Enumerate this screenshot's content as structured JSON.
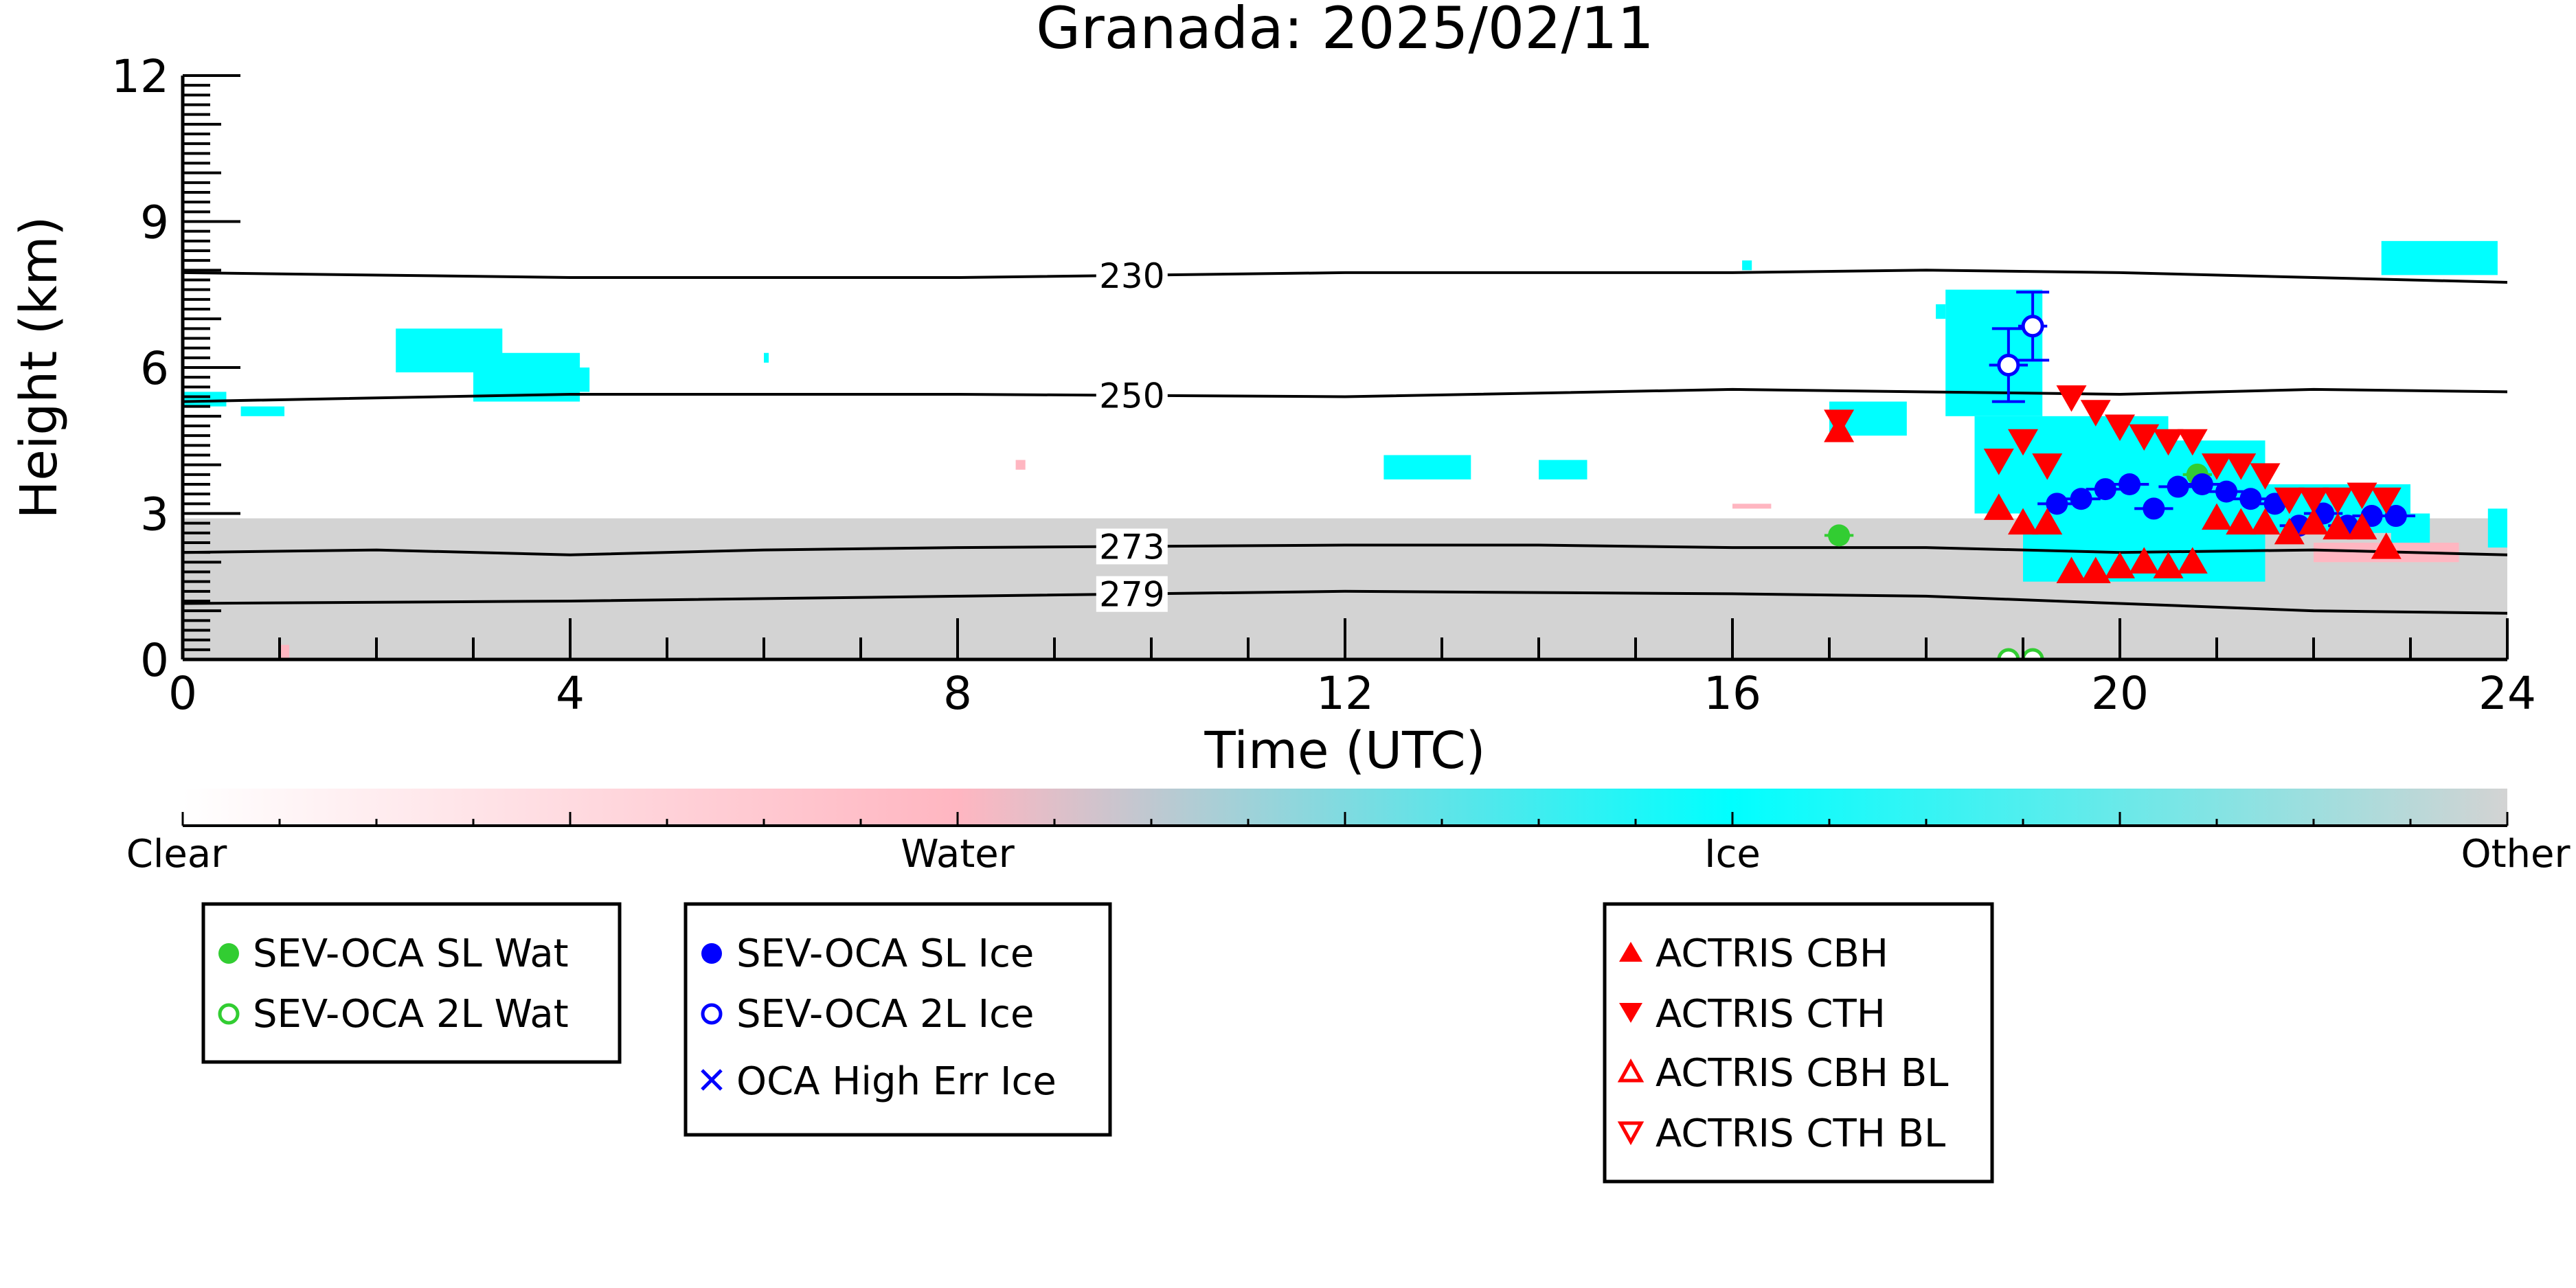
{
  "chart_data": {
    "type": "scatter",
    "title": "Granada: 2025/02/11",
    "xlabel": "Time (UTC)",
    "ylabel": "Height (km)",
    "xlim": [
      0,
      24
    ],
    "ylim": [
      0,
      12
    ],
    "xticks": [
      0,
      4,
      8,
      12,
      16,
      20,
      24
    ],
    "yticks": [
      0,
      3,
      6,
      9,
      12
    ],
    "grid": false,
    "colors": {
      "clear": "#ffffff",
      "water": "#ffb6c1",
      "ice": "#00ffff",
      "other": "#d3d3d3",
      "contour": "#000000",
      "green": "#32cd32",
      "blue": "#0000ff",
      "red": "#ff0000"
    },
    "colorbar": {
      "labels": [
        "Clear",
        "Water",
        "Ice",
        "Other"
      ]
    },
    "temperature_contours": [
      {
        "label": "230",
        "label_x": 9.8,
        "points": [
          [
            0,
            7.95
          ],
          [
            4,
            7.85
          ],
          [
            8,
            7.85
          ],
          [
            12,
            7.95
          ],
          [
            16,
            7.95
          ],
          [
            18,
            8.0
          ],
          [
            20,
            7.95
          ],
          [
            22,
            7.85
          ],
          [
            24,
            7.75
          ]
        ]
      },
      {
        "label": "250",
        "label_x": 9.8,
        "points": [
          [
            0,
            5.3
          ],
          [
            4,
            5.45
          ],
          [
            8,
            5.45
          ],
          [
            12,
            5.4
          ],
          [
            16,
            5.55
          ],
          [
            20,
            5.45
          ],
          [
            22,
            5.55
          ],
          [
            24,
            5.5
          ]
        ]
      },
      {
        "label": "273",
        "label_x": 9.8,
        "points": [
          [
            0,
            2.2
          ],
          [
            2,
            2.25
          ],
          [
            4,
            2.15
          ],
          [
            6,
            2.25
          ],
          [
            8,
            2.3
          ],
          [
            12,
            2.35
          ],
          [
            14,
            2.35
          ],
          [
            16,
            2.3
          ],
          [
            18,
            2.3
          ],
          [
            20,
            2.2
          ],
          [
            22,
            2.25
          ],
          [
            24,
            2.15
          ]
        ]
      },
      {
        "label": "279",
        "label_x": 9.8,
        "points": [
          [
            0,
            1.15
          ],
          [
            4,
            1.2
          ],
          [
            8,
            1.3
          ],
          [
            12,
            1.4
          ],
          [
            16,
            1.35
          ],
          [
            18,
            1.3
          ],
          [
            20,
            1.15
          ],
          [
            22,
            1.0
          ],
          [
            24,
            0.95
          ]
        ]
      }
    ],
    "masks": {
      "other": [
        [
          0,
          24,
          0,
          2.9
        ]
      ],
      "ice": [
        [
          0,
          0.45,
          5.2,
          5.5
        ],
        [
          0.6,
          1.05,
          5.0,
          5.2
        ],
        [
          2.2,
          3.3,
          5.9,
          6.8
        ],
        [
          3.0,
          4.1,
          5.3,
          6.3
        ],
        [
          3.8,
          4.2,
          5.5,
          6.0
        ],
        [
          6.0,
          6.05,
          6.1,
          6.3
        ],
        [
          12.4,
          13.3,
          3.7,
          4.2
        ],
        [
          14.0,
          14.5,
          3.7,
          4.1
        ],
        [
          16.1,
          16.2,
          8.0,
          8.2
        ],
        [
          17.0,
          17.8,
          4.6,
          5.3
        ],
        [
          18.1,
          18.2,
          7.0,
          7.3
        ],
        [
          18.2,
          19.2,
          5.0,
          7.6
        ],
        [
          18.5,
          20.5,
          3.0,
          5.0
        ],
        [
          19.0,
          21.5,
          1.6,
          4.5
        ],
        [
          21.0,
          23.0,
          2.6,
          3.6
        ],
        [
          22.8,
          23.2,
          2.4,
          3.0
        ],
        [
          22.7,
          23.9,
          7.9,
          8.6
        ],
        [
          23.8,
          24.0,
          2.3,
          3.1
        ]
      ],
      "water": [
        [
          1.0,
          1.1,
          0.0,
          0.3
        ],
        [
          8.6,
          8.7,
          3.9,
          4.1
        ],
        [
          16.0,
          16.4,
          3.1,
          3.2
        ],
        [
          22.0,
          23.5,
          2.0,
          2.4
        ]
      ]
    },
    "series": [
      {
        "name": "SEV-OCA SL Wat",
        "marker": "filled-circle",
        "color": "#32cd32",
        "x": [
          17.1,
          20.8
        ],
        "y": [
          2.55,
          3.8
        ],
        "xerr": [
          0.15,
          0.15
        ]
      },
      {
        "name": "SEV-OCA 2L Wat",
        "marker": "open-circle",
        "color": "#32cd32",
        "x": [
          18.85,
          19.1
        ],
        "y": [
          0.0,
          0.0
        ]
      },
      {
        "name": "SEV-OCA SL Ice",
        "marker": "filled-circle",
        "color": "#0000ff",
        "x": [
          19.35,
          19.6,
          19.85,
          20.1,
          20.35,
          20.6,
          20.85,
          21.1,
          21.35,
          21.6,
          21.85,
          22.1,
          22.35,
          22.6,
          22.85
        ],
        "y": [
          3.2,
          3.3,
          3.5,
          3.6,
          3.1,
          3.55,
          3.6,
          3.45,
          3.3,
          3.2,
          2.75,
          3.0,
          2.75,
          2.95,
          2.95
        ],
        "xerr": [
          0.2,
          0.2,
          0.2,
          0.2,
          0.2,
          0.2,
          0.2,
          0.2,
          0.2,
          0.2,
          0.2,
          0.2,
          0.2,
          0.2,
          0.2
        ]
      },
      {
        "name": "SEV-OCA 2L Ice",
        "marker": "open-circle",
        "color": "#0000ff",
        "x": [
          18.85,
          19.1
        ],
        "y": [
          6.05,
          6.85
        ],
        "yerr": [
          0.75,
          0.7
        ],
        "xerr": [
          0.2,
          0.15
        ]
      },
      {
        "name": "OCA High Err Ice",
        "marker": "x",
        "color": "#0000ff",
        "x": [],
        "y": []
      },
      {
        "name": "ACTRIS CBH",
        "marker": "triangle-up",
        "color": "#ff0000",
        "x": [
          17.1,
          18.75,
          19.0,
          19.25,
          19.5,
          19.75,
          20.0,
          20.25,
          20.5,
          20.75,
          21.0,
          21.25,
          21.5,
          21.75,
          22.0,
          22.25,
          22.5,
          22.75
        ],
        "y": [
          4.7,
          3.1,
          2.8,
          2.8,
          1.8,
          1.8,
          1.9,
          2.0,
          1.9,
          2.0,
          2.9,
          2.8,
          2.8,
          2.6,
          2.8,
          2.7,
          2.7,
          2.3
        ]
      },
      {
        "name": "ACTRIS CTH",
        "marker": "triangle-down",
        "color": "#ff0000",
        "x": [
          17.1,
          18.75,
          19.0,
          19.25,
          19.5,
          19.75,
          20.0,
          20.25,
          20.5,
          20.75,
          21.0,
          21.25,
          21.5,
          21.75,
          22.0,
          22.25,
          22.5,
          22.75
        ],
        "y": [
          4.9,
          4.1,
          4.5,
          4.0,
          5.4,
          5.1,
          4.8,
          4.6,
          4.5,
          4.5,
          4.0,
          4.0,
          3.8,
          3.3,
          3.3,
          3.3,
          3.4,
          3.3
        ]
      },
      {
        "name": "ACTRIS CBH BL",
        "marker": "open-triangle-up",
        "color": "#ff0000",
        "x": [],
        "y": []
      },
      {
        "name": "ACTRIS CTH BL",
        "marker": "open-triangle-down",
        "color": "#ff0000",
        "x": [],
        "y": []
      }
    ],
    "legend_groups": [
      [
        "SEV-OCA SL Wat",
        "SEV-OCA 2L Wat"
      ],
      [
        "SEV-OCA SL Ice",
        "SEV-OCA 2L Ice",
        "OCA High Err Ice"
      ],
      [
        "ACTRIS CBH",
        "ACTRIS CTH",
        "ACTRIS CBH BL",
        "ACTRIS CTH BL"
      ]
    ]
  }
}
